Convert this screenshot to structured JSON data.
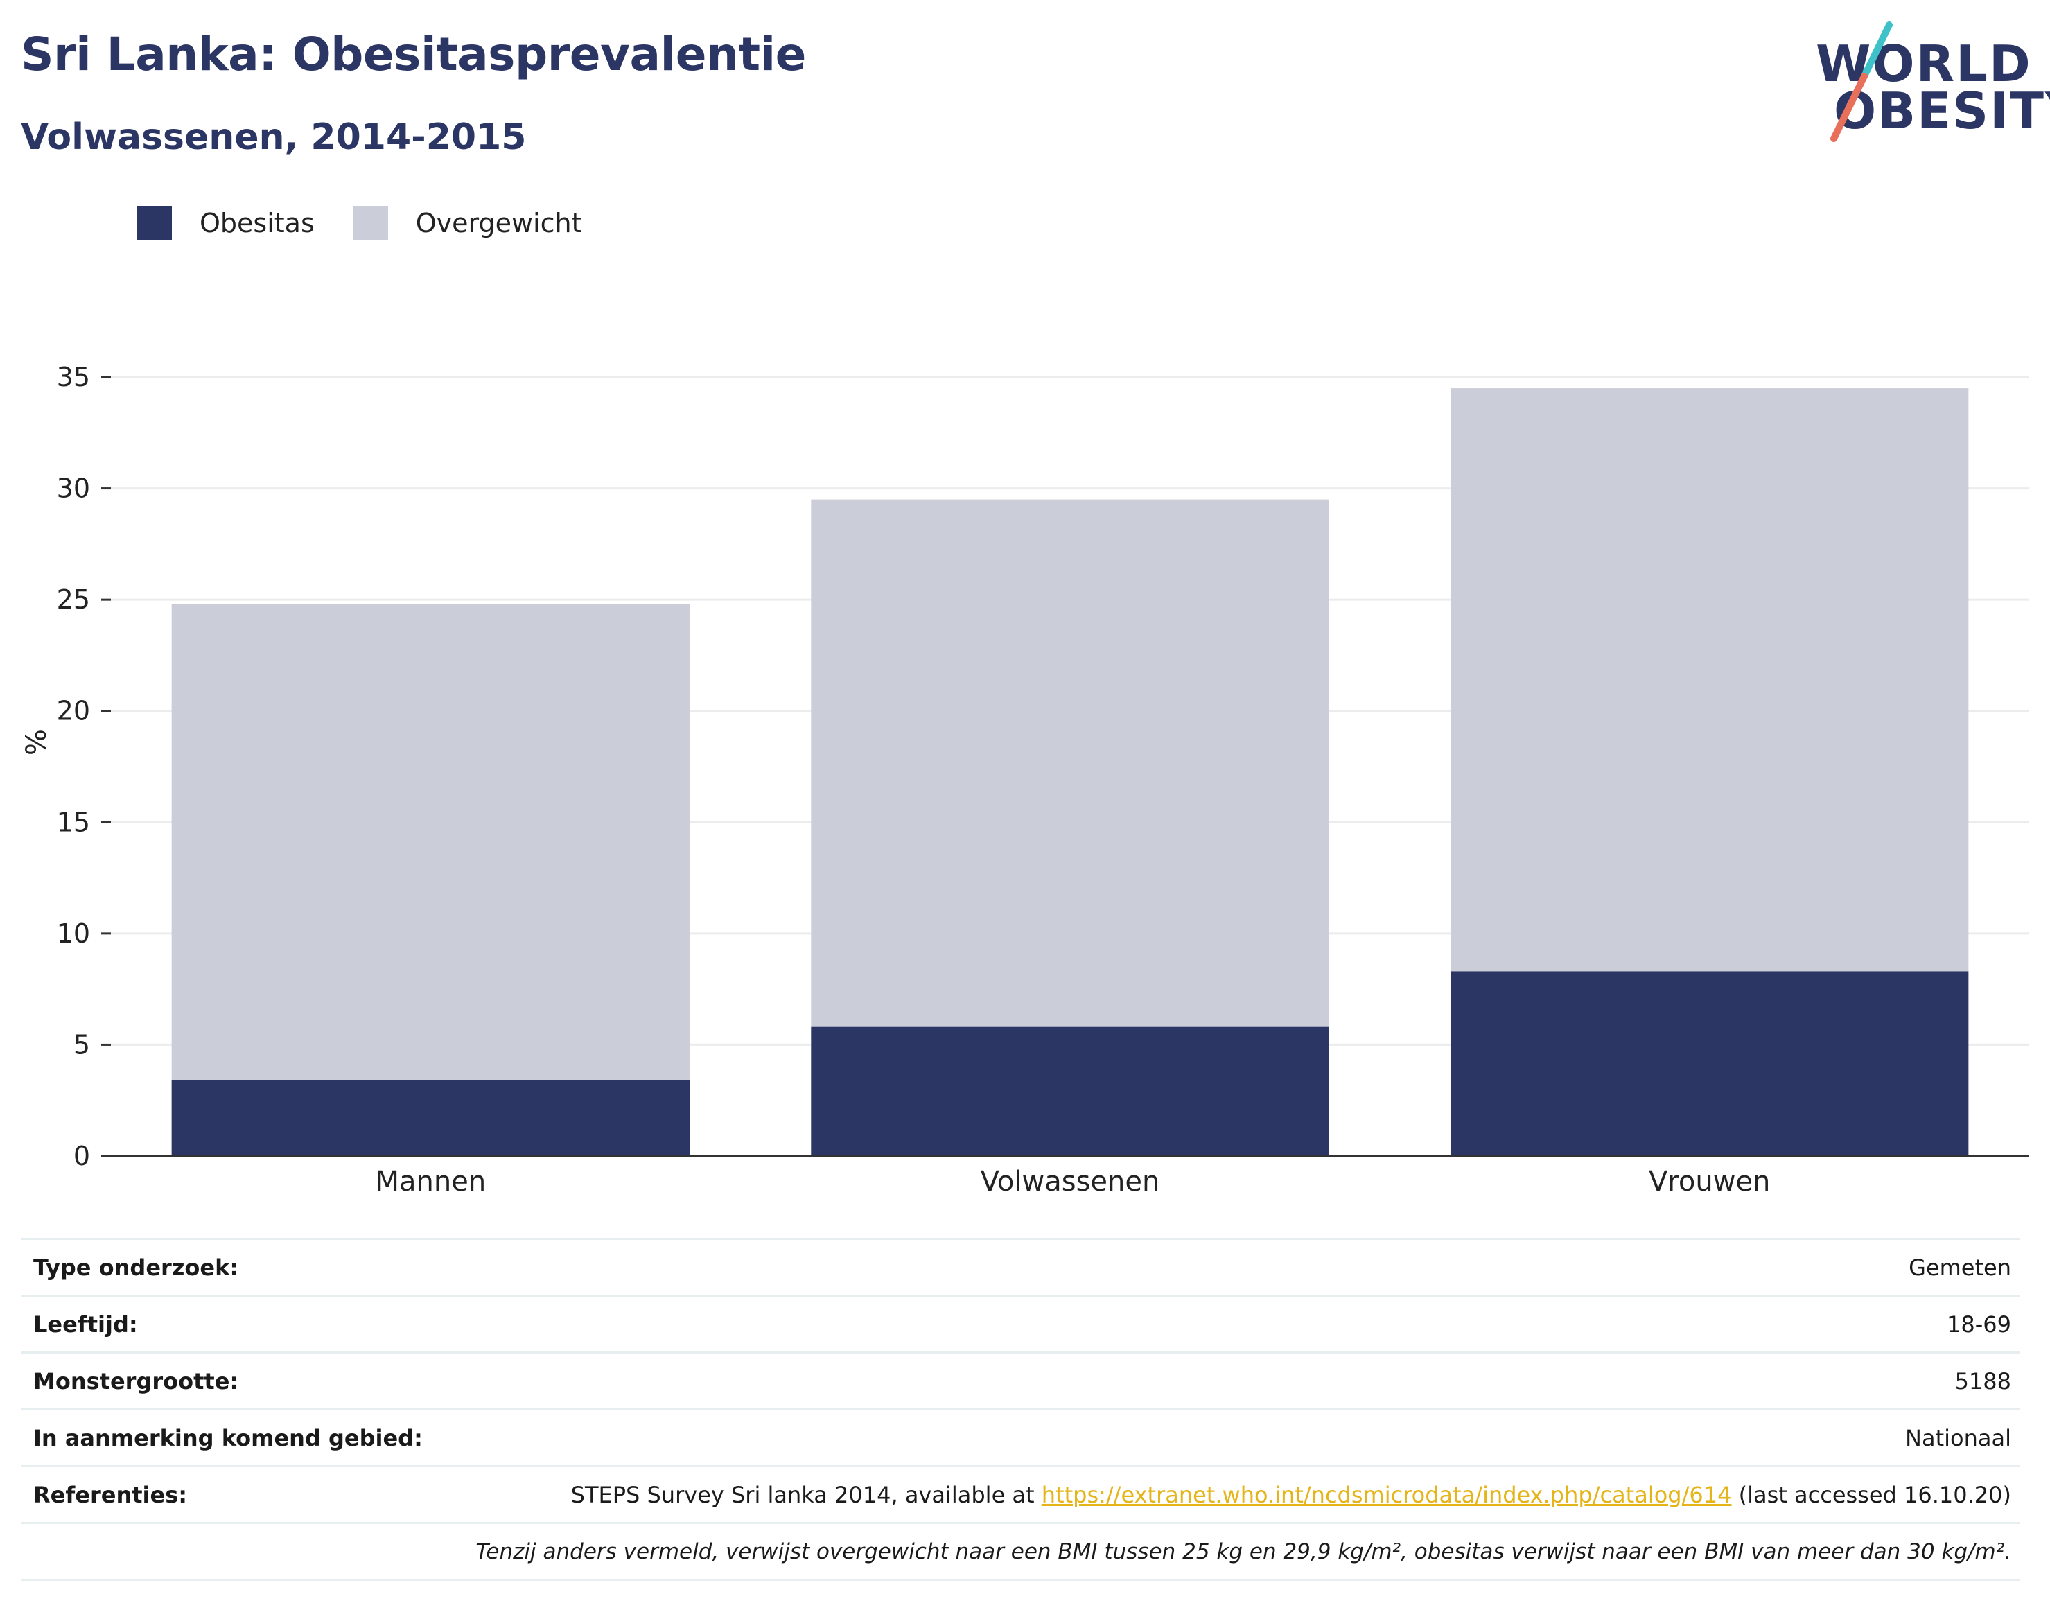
{
  "title": "Sri Lanka: Obesitasprevalentie",
  "subtitle": "Volwassenen, 2014-2015",
  "logo": {
    "line1": "WORLD",
    "line2": "OBESITY"
  },
  "colors": {
    "obesitas": "#2b3664",
    "overgewicht": "#cbcdd8",
    "title": "#2b3664",
    "link": "#e4b419",
    "logo_slash_top": "#3fc1c9",
    "logo_slash_bottom": "#e86f5a"
  },
  "legend": [
    {
      "label": "Obesitas",
      "color": "#2b3664"
    },
    {
      "label": "Overgewicht",
      "color": "#cbcdd8"
    }
  ],
  "chart_data": {
    "type": "bar",
    "stacked": false,
    "overlay": true,
    "categories": [
      "Mannen",
      "Volwassenen",
      "Vrouwen"
    ],
    "series": [
      {
        "name": "Overgewicht",
        "values": [
          24.8,
          29.5,
          34.5
        ]
      },
      {
        "name": "Obesitas",
        "values": [
          3.4,
          5.8,
          8.3
        ]
      }
    ],
    "ylabel": "%",
    "ylim": [
      0,
      35
    ],
    "yticks": [
      0,
      5,
      10,
      15,
      20,
      25,
      30,
      35
    ],
    "grid": true,
    "legend_position": "top-left"
  },
  "info": {
    "rows": [
      {
        "key": "Type onderzoek:",
        "value": "Gemeten"
      },
      {
        "key": "Leeftijd:",
        "value": "18-69"
      },
      {
        "key": "Monstergrootte:",
        "value": "5188"
      },
      {
        "key": "In aanmerking komend gebied:",
        "value": "Nationaal"
      }
    ],
    "references": {
      "key": "Referenties:",
      "prefix": "STEPS Survey Sri lanka 2014, available at ",
      "link": "https://extranet.who.int/ncdsmicrodata/index.php/catalog/614",
      "suffix": " (last accessed 16.10.20)"
    },
    "note": "Tenzij anders vermeld, verwijst overgewicht naar een BMI tussen 25 kg en 29,9 kg/m², obesitas verwijst naar een BMI van meer dan 30 kg/m²."
  }
}
